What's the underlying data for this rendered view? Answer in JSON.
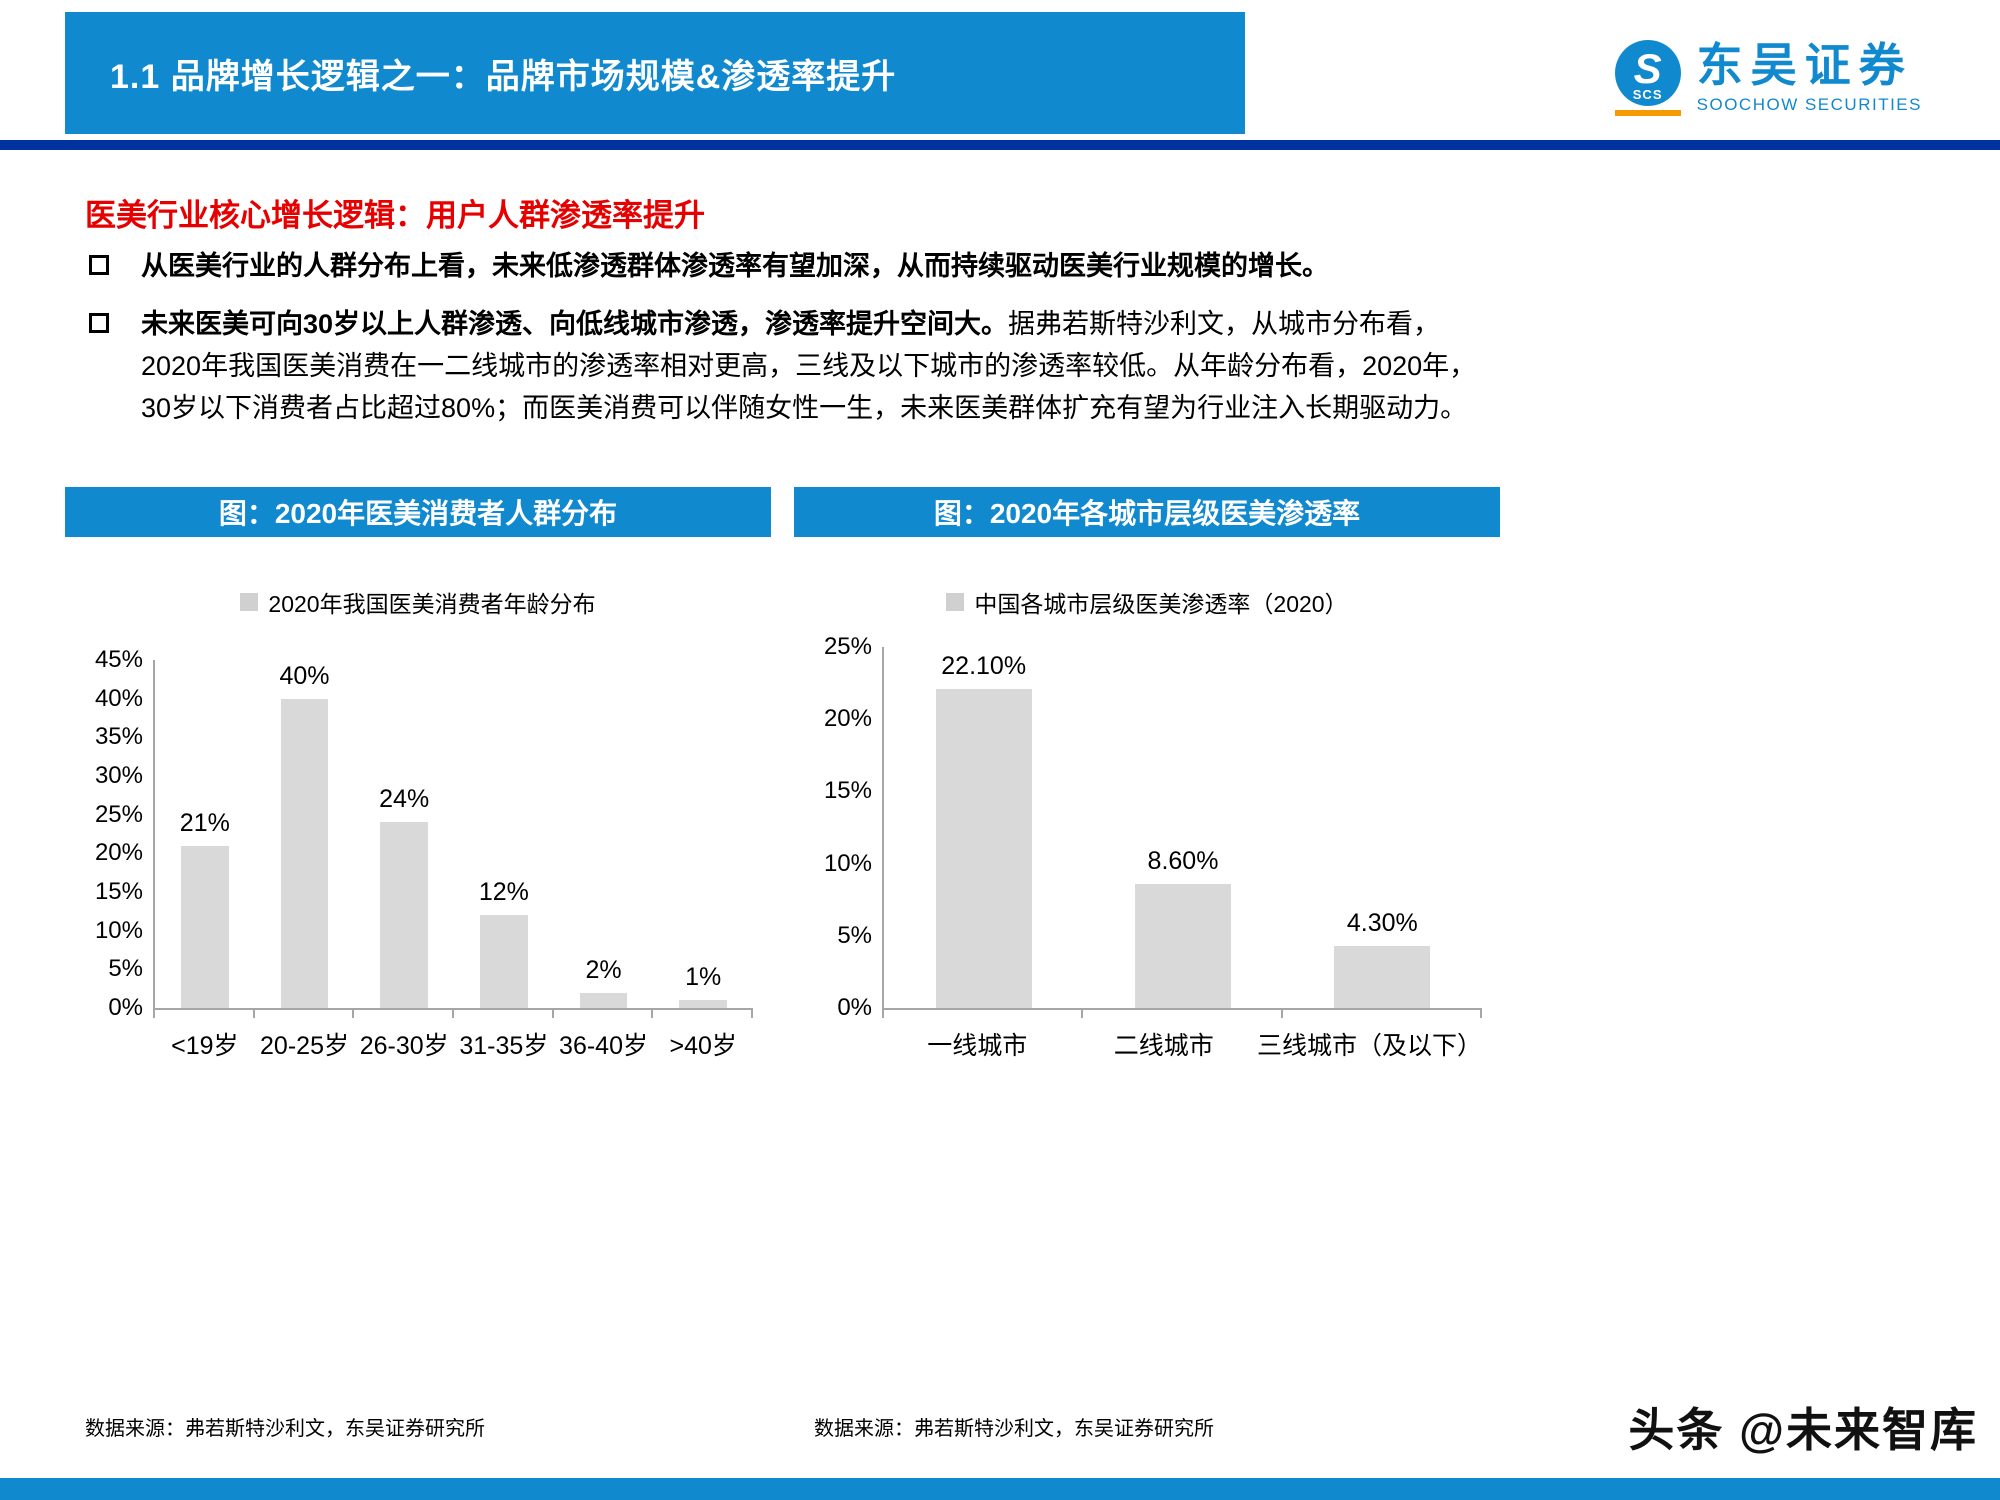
{
  "colors": {
    "accent_blue": "#1189ce",
    "divider_navy": "#0032a0",
    "heading_red": "#e60000",
    "bar_fill": "#d9d9d9",
    "axis_gray": "#a6a6a6",
    "logo_orange": "#f59a00"
  },
  "header": {
    "title": "1.1 品牌增长逻辑之一：品牌市场规模&渗透率提升",
    "logo_name": "东吴证券",
    "logo_sub": "SOOCHOW SECURITIES",
    "logo_abbr": "SCS"
  },
  "body": {
    "section_title": "医美行业核心增长逻辑：用户人群渗透率提升",
    "bullets": [
      {
        "bold": "从医美行业的人群分布上看，未来低渗透群体渗透率有望加深，从而持续驱动医美行业规模的增长。",
        "normal": ""
      },
      {
        "bold": "未来医美可向30岁以上人群渗透、向低线城市渗透，渗透率提升空间大。",
        "normal": "据弗若斯特沙利文，从城市分布看，2020年我国医美消费在一二线城市的渗透率相对更高，三线及以下城市的渗透率较低。从年龄分布看，2020年，30岁以下消费者占比超过80%；而医美消费可以伴随女性一生，未来医美群体扩充有望为行业注入长期驱动力。"
      }
    ]
  },
  "chart_data": [
    {
      "type": "bar",
      "title": "图：2020年医美消费者人群分布",
      "legend": "2020年我国医美消费者年龄分布",
      "categories": [
        "<19岁",
        "20-25岁",
        "26-30岁",
        "31-35岁",
        "36-40岁",
        ">40岁"
      ],
      "values": [
        21,
        40,
        24,
        12,
        2,
        1
      ],
      "labels": [
        "21%",
        "40%",
        "24%",
        "12%",
        "2%",
        "1%"
      ],
      "xlabel": "",
      "ylabel": "",
      "ylim": [
        0,
        45
      ],
      "ytick_step": 5,
      "grid": false,
      "legend_position": "top",
      "source": "数据来源：弗若斯特沙利文，东吴证券研究所"
    },
    {
      "type": "bar",
      "title": "图：2020年各城市层级医美渗透率",
      "legend": "中国各城市层级医美渗透率（2020）",
      "categories": [
        "一线城市",
        "二线城市",
        "三线城市（及以下）"
      ],
      "values": [
        22.1,
        8.6,
        4.3
      ],
      "labels": [
        "22.10%",
        "8.60%",
        "4.30%"
      ],
      "xlabel": "",
      "ylabel": "",
      "ylim": [
        0,
        25
      ],
      "ytick_step": 5,
      "grid": false,
      "legend_position": "top",
      "source": "数据来源：弗若斯特沙利文，东吴证券研究所"
    }
  ],
  "footer": {
    "watermark": "头条 @未来智库"
  }
}
